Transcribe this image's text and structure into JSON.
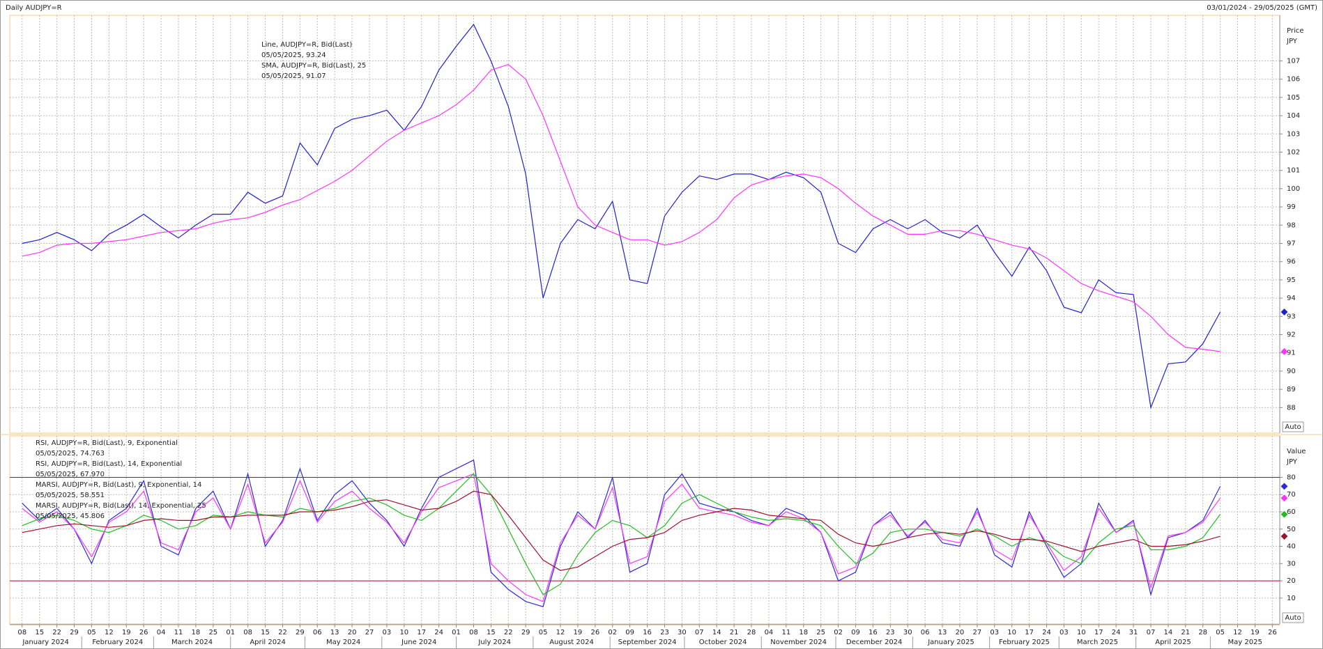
{
  "header": {
    "title": "Daily AUDJPY=R",
    "range": "03/01/2024 - 29/05/2025 (GMT)"
  },
  "chart_data": [
    {
      "type": "line",
      "axis_title": "Price",
      "axis_unit": "JPY",
      "auto_label": "Auto",
      "xlim": [
        "2024-01-03",
        "2025-05-29"
      ],
      "ylim": [
        86.6,
        109.5
      ],
      "yticks": [
        88,
        89,
        90,
        91,
        92,
        93,
        94,
        95,
        96,
        97,
        98,
        99,
        100,
        101,
        102,
        103,
        104,
        105,
        106,
        107
      ],
      "grid": true,
      "x": [
        "2024-01-08",
        "2024-01-15",
        "2024-01-22",
        "2024-01-29",
        "2024-02-05",
        "2024-02-12",
        "2024-02-19",
        "2024-02-26",
        "2024-03-04",
        "2024-03-11",
        "2024-03-18",
        "2024-03-25",
        "2024-04-01",
        "2024-04-08",
        "2024-04-15",
        "2024-04-22",
        "2024-04-29",
        "2024-05-06",
        "2024-05-13",
        "2024-05-20",
        "2024-05-27",
        "2024-06-03",
        "2024-06-10",
        "2024-06-17",
        "2024-06-24",
        "2024-07-01",
        "2024-07-08",
        "2024-07-15",
        "2024-07-22",
        "2024-07-29",
        "2024-08-05",
        "2024-08-12",
        "2024-08-19",
        "2024-08-26",
        "2024-09-02",
        "2024-09-09",
        "2024-09-16",
        "2024-09-23",
        "2024-09-30",
        "2024-10-07",
        "2024-10-14",
        "2024-10-21",
        "2024-10-28",
        "2024-11-04",
        "2024-11-11",
        "2024-11-18",
        "2024-11-25",
        "2024-12-02",
        "2024-12-09",
        "2024-12-16",
        "2024-12-23",
        "2024-12-30",
        "2025-01-06",
        "2025-01-13",
        "2025-01-20",
        "2025-01-27",
        "2025-02-03",
        "2025-02-10",
        "2025-02-17",
        "2025-02-24",
        "2025-03-03",
        "2025-03-10",
        "2025-03-17",
        "2025-03-24",
        "2025-03-31",
        "2025-04-07",
        "2025-04-14",
        "2025-04-21",
        "2025-04-28",
        "2025-05-05"
      ],
      "series": [
        {
          "name": "Line, AUDJPY=R, Bid(Last)",
          "legend_value": "05/05/2025, 93.24",
          "color": "#1f1fd6",
          "values": [
            97.0,
            97.2,
            97.6,
            97.2,
            96.6,
            97.5,
            98.0,
            98.6,
            97.9,
            97.3,
            98.0,
            98.6,
            98.6,
            99.8,
            99.2,
            99.6,
            102.5,
            101.3,
            103.3,
            103.8,
            104.0,
            104.3,
            103.2,
            104.5,
            106.5,
            107.8,
            109.0,
            107.0,
            104.5,
            100.8,
            94.0,
            97.0,
            98.3,
            97.8,
            99.3,
            95.0,
            94.8,
            98.5,
            99.8,
            100.7,
            100.5,
            100.8,
            100.8,
            100.5,
            100.9,
            100.6,
            99.8,
            97.0,
            96.5,
            97.8,
            98.3,
            97.8,
            98.3,
            97.6,
            97.3,
            98.0,
            96.5,
            95.2,
            96.8,
            95.5,
            93.5,
            93.2,
            95.0,
            94.3,
            94.2,
            88.0,
            90.4,
            90.5,
            91.5,
            93.24
          ]
        },
        {
          "name": "SMA, AUDJPY=R, Bid(Last), 25",
          "legend_value": "05/05/2025, 91.07",
          "color": "#ff33ff",
          "values": [
            96.3,
            96.5,
            96.9,
            97.0,
            97.0,
            97.1,
            97.2,
            97.4,
            97.6,
            97.7,
            97.8,
            98.1,
            98.3,
            98.4,
            98.7,
            99.1,
            99.4,
            99.9,
            100.4,
            101.0,
            101.8,
            102.6,
            103.2,
            103.6,
            104.0,
            104.6,
            105.4,
            106.5,
            106.8,
            106.0,
            104.0,
            101.5,
            99.0,
            98.0,
            97.6,
            97.2,
            97.2,
            96.9,
            97.1,
            97.6,
            98.3,
            99.5,
            100.2,
            100.5,
            100.7,
            100.8,
            100.6,
            100.0,
            99.2,
            98.5,
            98.0,
            97.5,
            97.5,
            97.7,
            97.7,
            97.5,
            97.2,
            96.9,
            96.7,
            96.2,
            95.5,
            94.8,
            94.4,
            94.1,
            93.8,
            93.0,
            92.0,
            91.3,
            91.2,
            91.07
          ]
        }
      ]
    },
    {
      "type": "line",
      "axis_title": "Value",
      "axis_unit": "JPY",
      "auto_label": "Auto",
      "ylim": [
        -5,
        104
      ],
      "yticks": [
        10,
        20,
        30,
        40,
        50,
        60,
        70,
        80
      ],
      "grid": true,
      "ref_lines": [
        80,
        20
      ],
      "ref_color": "#a01030",
      "xticks": [
        {
          "value": "2024-01-08",
          "label": "08"
        },
        {
          "value": "2024-01-15",
          "label": "15"
        },
        {
          "value": "2024-01-22",
          "label": "22"
        },
        {
          "value": "2024-01-29",
          "label": "29"
        },
        {
          "value": "2024-02-05",
          "label": "05"
        },
        {
          "value": "2024-02-12",
          "label": "12"
        },
        {
          "value": "2024-02-19",
          "label": "19"
        },
        {
          "value": "2024-02-26",
          "label": "26"
        },
        {
          "value": "2024-03-04",
          "label": "04"
        },
        {
          "value": "2024-03-11",
          "label": "11"
        },
        {
          "value": "2024-03-18",
          "label": "18"
        },
        {
          "value": "2024-03-25",
          "label": "25"
        },
        {
          "value": "2024-04-01",
          "label": "01"
        },
        {
          "value": "2024-04-08",
          "label": "08"
        },
        {
          "value": "2024-04-15",
          "label": "15"
        },
        {
          "value": "2024-04-22",
          "label": "22"
        },
        {
          "value": "2024-04-29",
          "label": "29"
        },
        {
          "value": "2024-05-06",
          "label": "06"
        },
        {
          "value": "2024-05-13",
          "label": "13"
        },
        {
          "value": "2024-05-20",
          "label": "20"
        },
        {
          "value": "2024-05-27",
          "label": "27"
        },
        {
          "value": "2024-06-03",
          "label": "03"
        },
        {
          "value": "2024-06-10",
          "label": "10"
        },
        {
          "value": "2024-06-17",
          "label": "17"
        },
        {
          "value": "2024-06-24",
          "label": "24"
        },
        {
          "value": "2024-07-01",
          "label": "01"
        },
        {
          "value": "2024-07-08",
          "label": "08"
        },
        {
          "value": "2024-07-15",
          "label": "15"
        },
        {
          "value": "2024-07-22",
          "label": "22"
        },
        {
          "value": "2024-07-29",
          "label": "29"
        },
        {
          "value": "2024-08-05",
          "label": "05"
        },
        {
          "value": "2024-08-12",
          "label": "12"
        },
        {
          "value": "2024-08-19",
          "label": "19"
        },
        {
          "value": "2024-08-26",
          "label": "26"
        },
        {
          "value": "2024-09-02",
          "label": "02"
        },
        {
          "value": "2024-09-09",
          "label": "09"
        },
        {
          "value": "2024-09-16",
          "label": "16"
        },
        {
          "value": "2024-09-23",
          "label": "23"
        },
        {
          "value": "2024-09-30",
          "label": "30"
        },
        {
          "value": "2024-10-07",
          "label": "07"
        },
        {
          "value": "2024-10-14",
          "label": "14"
        },
        {
          "value": "2024-10-21",
          "label": "21"
        },
        {
          "value": "2024-10-28",
          "label": "28"
        },
        {
          "value": "2024-11-04",
          "label": "04"
        },
        {
          "value": "2024-11-11",
          "label": "11"
        },
        {
          "value": "2024-11-18",
          "label": "18"
        },
        {
          "value": "2024-11-25",
          "label": "25"
        },
        {
          "value": "2024-12-02",
          "label": "02"
        },
        {
          "value": "2024-12-09",
          "label": "09"
        },
        {
          "value": "2024-12-16",
          "label": "16"
        },
        {
          "value": "2024-12-23",
          "label": "23"
        },
        {
          "value": "2024-12-30",
          "label": "30"
        },
        {
          "value": "2025-01-06",
          "label": "06"
        },
        {
          "value": "2025-01-13",
          "label": "13"
        },
        {
          "value": "2025-01-20",
          "label": "20"
        },
        {
          "value": "2025-01-27",
          "label": "27"
        },
        {
          "value": "2025-02-03",
          "label": "03"
        },
        {
          "value": "2025-02-10",
          "label": "10"
        },
        {
          "value": "2025-02-17",
          "label": "17"
        },
        {
          "value": "2025-02-24",
          "label": "24"
        },
        {
          "value": "2025-03-03",
          "label": "03"
        },
        {
          "value": "2025-03-10",
          "label": "10"
        },
        {
          "value": "2025-03-17",
          "label": "17"
        },
        {
          "value": "2025-03-24",
          "label": "24"
        },
        {
          "value": "2025-03-31",
          "label": "31"
        },
        {
          "value": "2025-04-07",
          "label": "07"
        },
        {
          "value": "2025-04-14",
          "label": "14"
        },
        {
          "value": "2025-04-21",
          "label": "21"
        },
        {
          "value": "2025-04-28",
          "label": "28"
        },
        {
          "value": "2025-05-05",
          "label": "05"
        },
        {
          "value": "2025-05-12",
          "label": "12"
        },
        {
          "value": "2025-05-19",
          "label": "19"
        },
        {
          "value": "2025-05-26",
          "label": "26"
        }
      ],
      "months": [
        {
          "value": "2024-01",
          "label": "January 2024"
        },
        {
          "value": "2024-02",
          "label": "February 2024"
        },
        {
          "value": "2024-03",
          "label": "March 2024"
        },
        {
          "value": "2024-04",
          "label": "April 2024"
        },
        {
          "value": "2024-05",
          "label": "May 2024"
        },
        {
          "value": "2024-06",
          "label": "June 2024"
        },
        {
          "value": "2024-07",
          "label": "July 2024"
        },
        {
          "value": "2024-08",
          "label": "August 2024"
        },
        {
          "value": "2024-09",
          "label": "September 2024"
        },
        {
          "value": "2024-10",
          "label": "October 2024"
        },
        {
          "value": "2024-11",
          "label": "November 2024"
        },
        {
          "value": "2024-12",
          "label": "December 2024"
        },
        {
          "value": "2025-01",
          "label": "January 2025"
        },
        {
          "value": "2025-02",
          "label": "February 2025"
        },
        {
          "value": "2025-03",
          "label": "March 2025"
        },
        {
          "value": "2025-04",
          "label": "April 2025"
        },
        {
          "value": "2025-05",
          "label": "May 2025"
        }
      ],
      "series": [
        {
          "name": "RSI, AUDJPY=R, Bid(Last), 9, Exponential",
          "legend_value": "05/05/2025, 74.763",
          "color": "#2a2ae0",
          "values": [
            65,
            55,
            62,
            50,
            30,
            55,
            62,
            78,
            40,
            35,
            62,
            72,
            50,
            82,
            40,
            55,
            85,
            55,
            70,
            78,
            65,
            55,
            40,
            62,
            80,
            85,
            90,
            25,
            15,
            8,
            5,
            40,
            60,
            50,
            80,
            25,
            30,
            70,
            82,
            65,
            62,
            60,
            55,
            52,
            62,
            58,
            48,
            20,
            25,
            52,
            60,
            45,
            55,
            42,
            40,
            62,
            35,
            28,
            60,
            40,
            22,
            30,
            65,
            48,
            55,
            12,
            45,
            48,
            55,
            74.763
          ]
        },
        {
          "name": "RSI, AUDJPY=R, Bid(Last), 14, Exponential",
          "legend_value": "05/05/2025, 67.970",
          "color": "#ff33ff",
          "values": [
            62,
            54,
            60,
            50,
            34,
            54,
            60,
            72,
            42,
            38,
            60,
            68,
            50,
            76,
            42,
            54,
            78,
            54,
            66,
            72,
            62,
            54,
            42,
            60,
            74,
            78,
            82,
            30,
            20,
            12,
            8,
            42,
            58,
            50,
            74,
            30,
            34,
            66,
            76,
            62,
            60,
            58,
            54,
            52,
            60,
            56,
            48,
            24,
            28,
            52,
            58,
            46,
            54,
            44,
            42,
            60,
            38,
            32,
            58,
            42,
            26,
            34,
            62,
            48,
            54,
            16,
            46,
            48,
            54,
            67.97
          ]
        },
        {
          "name": "MARSI, AUDJPY=R, Bid(Last), 9, Exponential, 14",
          "legend_value": "05/05/2025, 58.551",
          "color": "#1fbf1f",
          "values": [
            52,
            56,
            58,
            55,
            50,
            48,
            52,
            58,
            55,
            50,
            52,
            58,
            57,
            60,
            58,
            57,
            62,
            60,
            62,
            66,
            68,
            64,
            58,
            55,
            62,
            72,
            82,
            70,
            50,
            30,
            12,
            18,
            35,
            48,
            55,
            52,
            45,
            52,
            65,
            70,
            65,
            60,
            57,
            55,
            56,
            55,
            52,
            40,
            30,
            36,
            48,
            50,
            50,
            48,
            46,
            50,
            46,
            40,
            45,
            42,
            34,
            30,
            42,
            50,
            52,
            38,
            38,
            40,
            45,
            58.551
          ]
        },
        {
          "name": "MARSI, AUDJPY=R, Bid(Last), 14, Exponential, 25",
          "legend_value": "05/05/2025, 45.806",
          "color": "#a0102c",
          "values": [
            48,
            50,
            52,
            53,
            52,
            51,
            52,
            55,
            56,
            55,
            55,
            57,
            57,
            58,
            58,
            58,
            60,
            60,
            61,
            63,
            66,
            67,
            64,
            61,
            62,
            66,
            72,
            70,
            58,
            45,
            32,
            26,
            28,
            34,
            40,
            44,
            45,
            48,
            55,
            58,
            60,
            62,
            61,
            58,
            57,
            56,
            55,
            47,
            42,
            40,
            42,
            45,
            47,
            48,
            47,
            49,
            47,
            44,
            44,
            43,
            40,
            37,
            40,
            42,
            44,
            40,
            40,
            41,
            43,
            45.806
          ]
        }
      ]
    }
  ]
}
